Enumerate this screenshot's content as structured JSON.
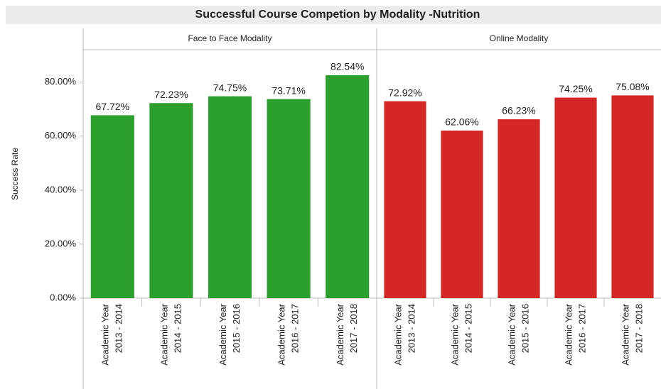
{
  "chart_data": {
    "type": "bar",
    "title": "Successful Course Competion by Modality -Nutrition",
    "y_label": "Success Rate",
    "categories": [
      [
        "Academic Year",
        "2013 - 2014"
      ],
      [
        "Academic Year",
        "2014 - 2015"
      ],
      [
        "Academic Year",
        "2015 - 2016"
      ],
      [
        "Academic Year",
        "2016 - 2017"
      ],
      [
        "Academic Year",
        "2017 - 2018"
      ]
    ],
    "series": [
      {
        "name": "Face to Face Modality",
        "color": "#2ca02c",
        "values": [
          67.72,
          72.23,
          74.75,
          73.71,
          82.54
        ],
        "value_labels": [
          "67.72%",
          "72.23%",
          "74.75%",
          "73.71%",
          "82.54%"
        ]
      },
      {
        "name": "Online Modality",
        "color": "#d62728",
        "values": [
          72.92,
          62.06,
          66.23,
          74.25,
          75.08
        ],
        "value_labels": [
          "72.92%",
          "62.06%",
          "66.23%",
          "74.25%",
          "75.08%"
        ]
      }
    ],
    "ylim": [
      0,
      92
    ],
    "yticks": [
      {
        "value": 0,
        "label": "0.00%"
      },
      {
        "value": 20,
        "label": "20.00%"
      },
      {
        "value": 40,
        "label": "40.00%"
      },
      {
        "value": 60,
        "label": "60.00%"
      },
      {
        "value": 80,
        "label": "80.00%"
      }
    ],
    "grid": false
  }
}
